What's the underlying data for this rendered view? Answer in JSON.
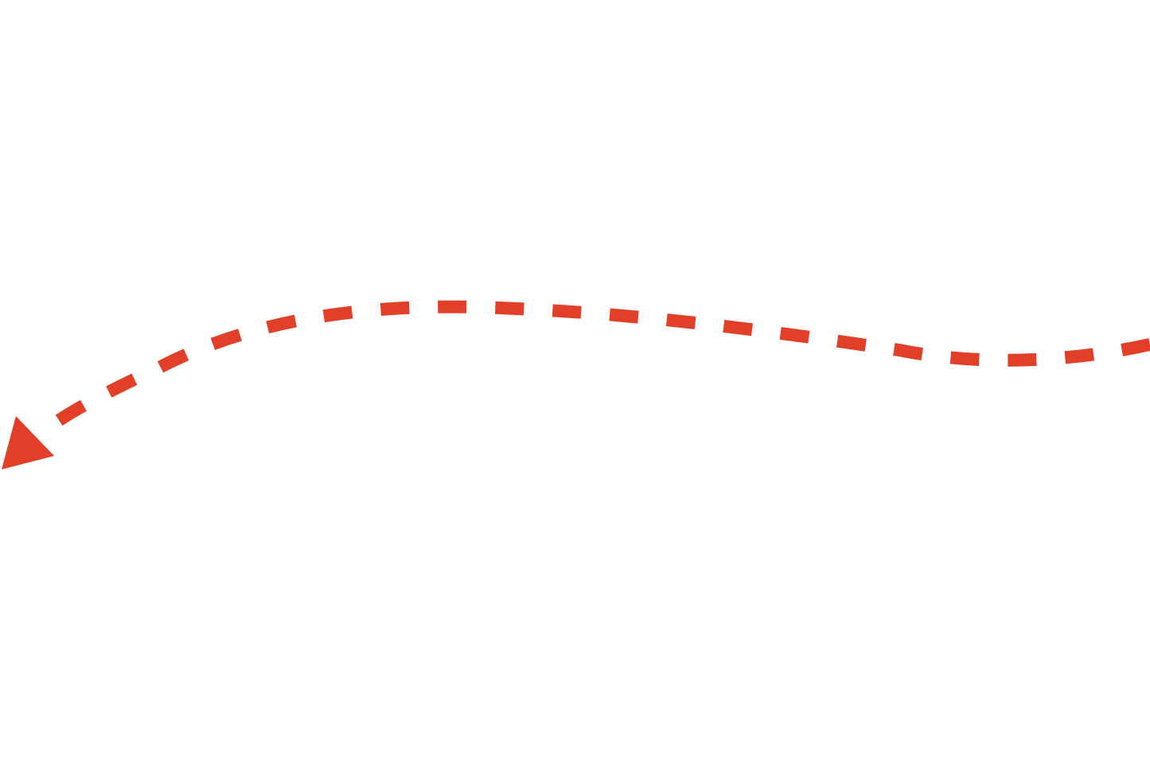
{
  "background_color": "#ffffff",
  "arrow": {
    "icon": "dashed-curved-arrow-icon",
    "color": "#e23f28",
    "line_style": "dashed",
    "direction": "right-to-left",
    "head": "left"
  }
}
